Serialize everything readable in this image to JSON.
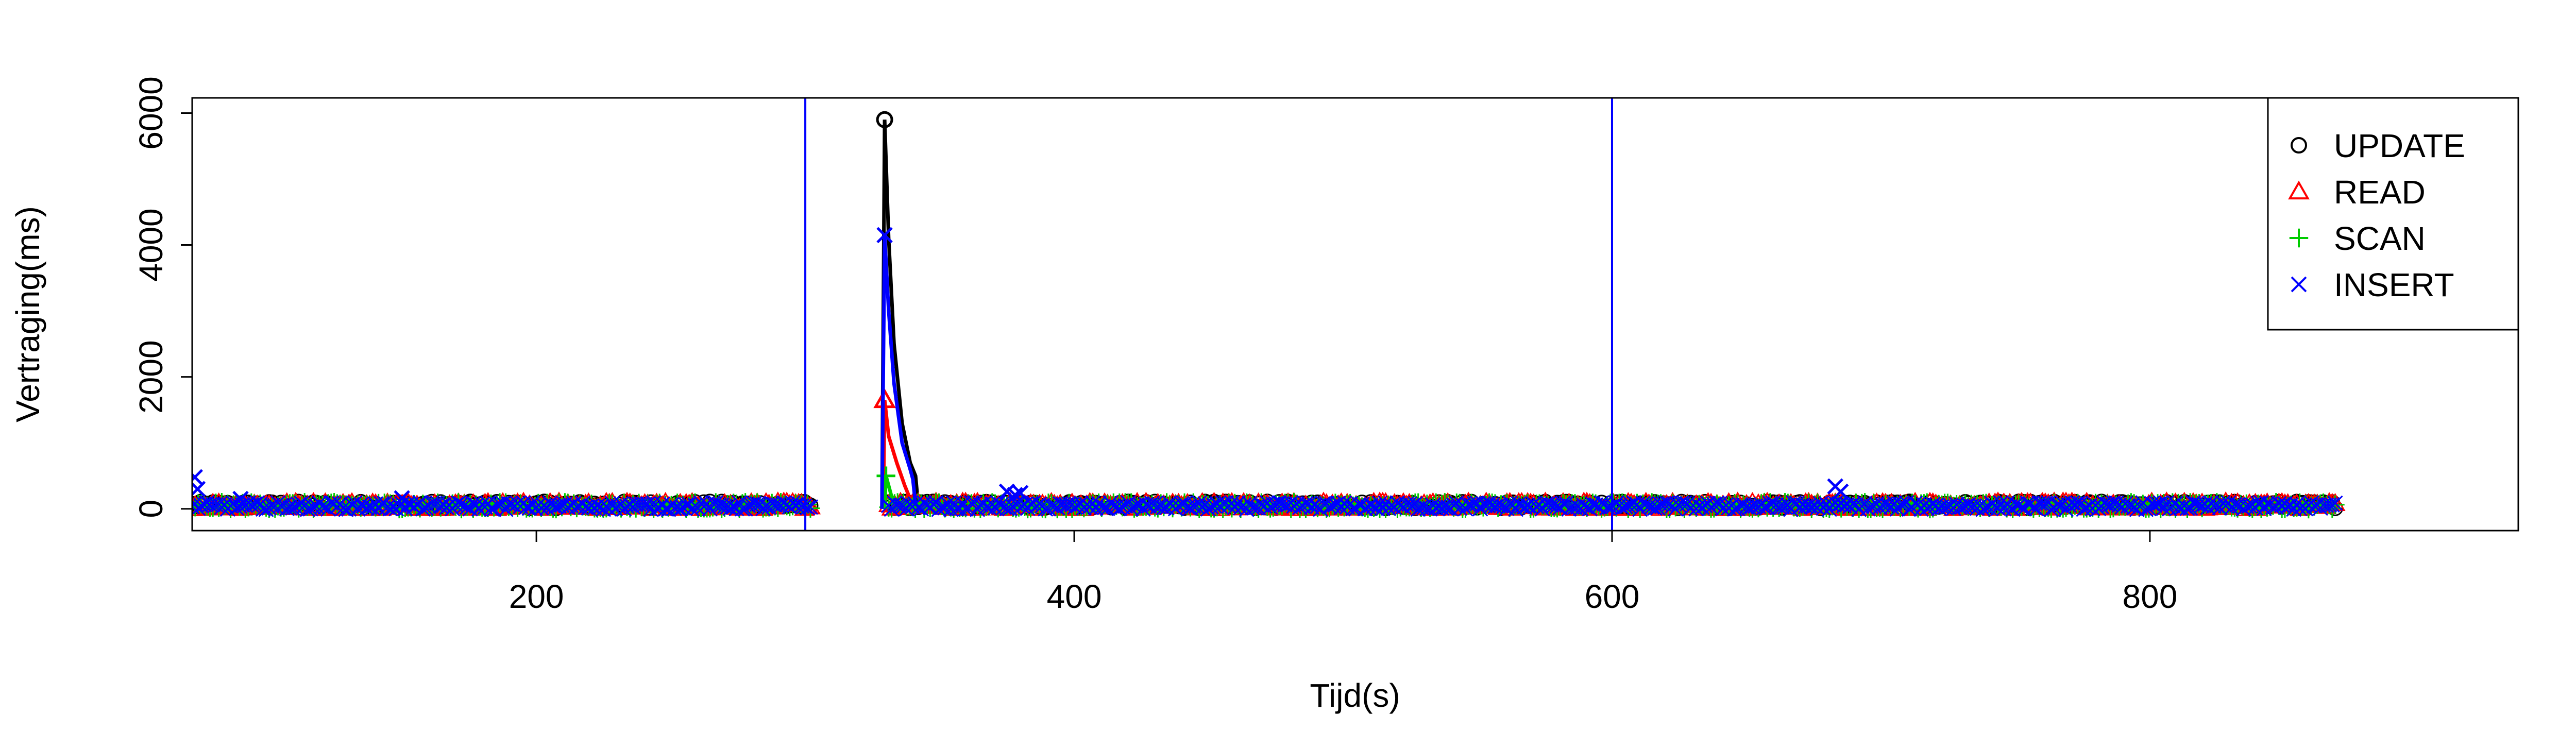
{
  "chart_data": {
    "type": "scatter",
    "xlabel": "Tijd(s)",
    "ylabel": "Vertraging(ms)",
    "xlim": [
      72,
      937
    ],
    "ylim": [
      -330,
      6230
    ],
    "xticks": [
      200,
      400,
      600,
      800
    ],
    "yticks": [
      0,
      2000,
      4000,
      6000
    ],
    "grid": false,
    "legend_position": "top-right",
    "vlines": [
      {
        "x": 300,
        "color": "#0000ff"
      },
      {
        "x": 600,
        "color": "#0000ff"
      }
    ],
    "phases": [
      {
        "start": 72,
        "end": 302,
        "level": 60,
        "spread": 50
      },
      {
        "start": 331,
        "end": 870,
        "level": 60,
        "spread": 50
      }
    ],
    "series": [
      {
        "name": "UPDATE",
        "symbol": "circle",
        "color": "#000000",
        "spike": [
          [
            328.5,
            0
          ],
          [
            329.5,
            5900
          ],
          [
            331,
            4100
          ],
          [
            333,
            2500
          ],
          [
            336,
            1300
          ],
          [
            339,
            700
          ],
          [
            341,
            500
          ],
          [
            342,
            60
          ]
        ],
        "outliers": []
      },
      {
        "name": "READ",
        "symbol": "triangle",
        "color": "#ff0000",
        "spike": [
          [
            329,
            0
          ],
          [
            329.5,
            1650
          ],
          [
            331,
            1100
          ],
          [
            334,
            700
          ],
          [
            337,
            350
          ],
          [
            339,
            150
          ],
          [
            340,
            60
          ]
        ],
        "outliers": []
      },
      {
        "name": "SCAN",
        "symbol": "plus",
        "color": "#00cc00",
        "spike": [
          [
            329.5,
            0
          ],
          [
            330,
            500
          ],
          [
            332,
            200
          ],
          [
            334,
            60
          ]
        ],
        "outliers": []
      },
      {
        "name": "INSERT",
        "symbol": "cross",
        "color": "#0000ff",
        "spike": [
          [
            328.5,
            0
          ],
          [
            329.5,
            4150
          ],
          [
            331,
            3000
          ],
          [
            333,
            1900
          ],
          [
            336,
            1000
          ],
          [
            339,
            600
          ],
          [
            340,
            450
          ],
          [
            341,
            60
          ]
        ],
        "outliers": [
          [
            73,
            480
          ],
          [
            74,
            300
          ],
          [
            90,
            150
          ],
          [
            150,
            160
          ],
          [
            375,
            260
          ],
          [
            378,
            210
          ],
          [
            380,
            240
          ],
          [
            683,
            340
          ],
          [
            685,
            260
          ]
        ]
      }
    ]
  }
}
